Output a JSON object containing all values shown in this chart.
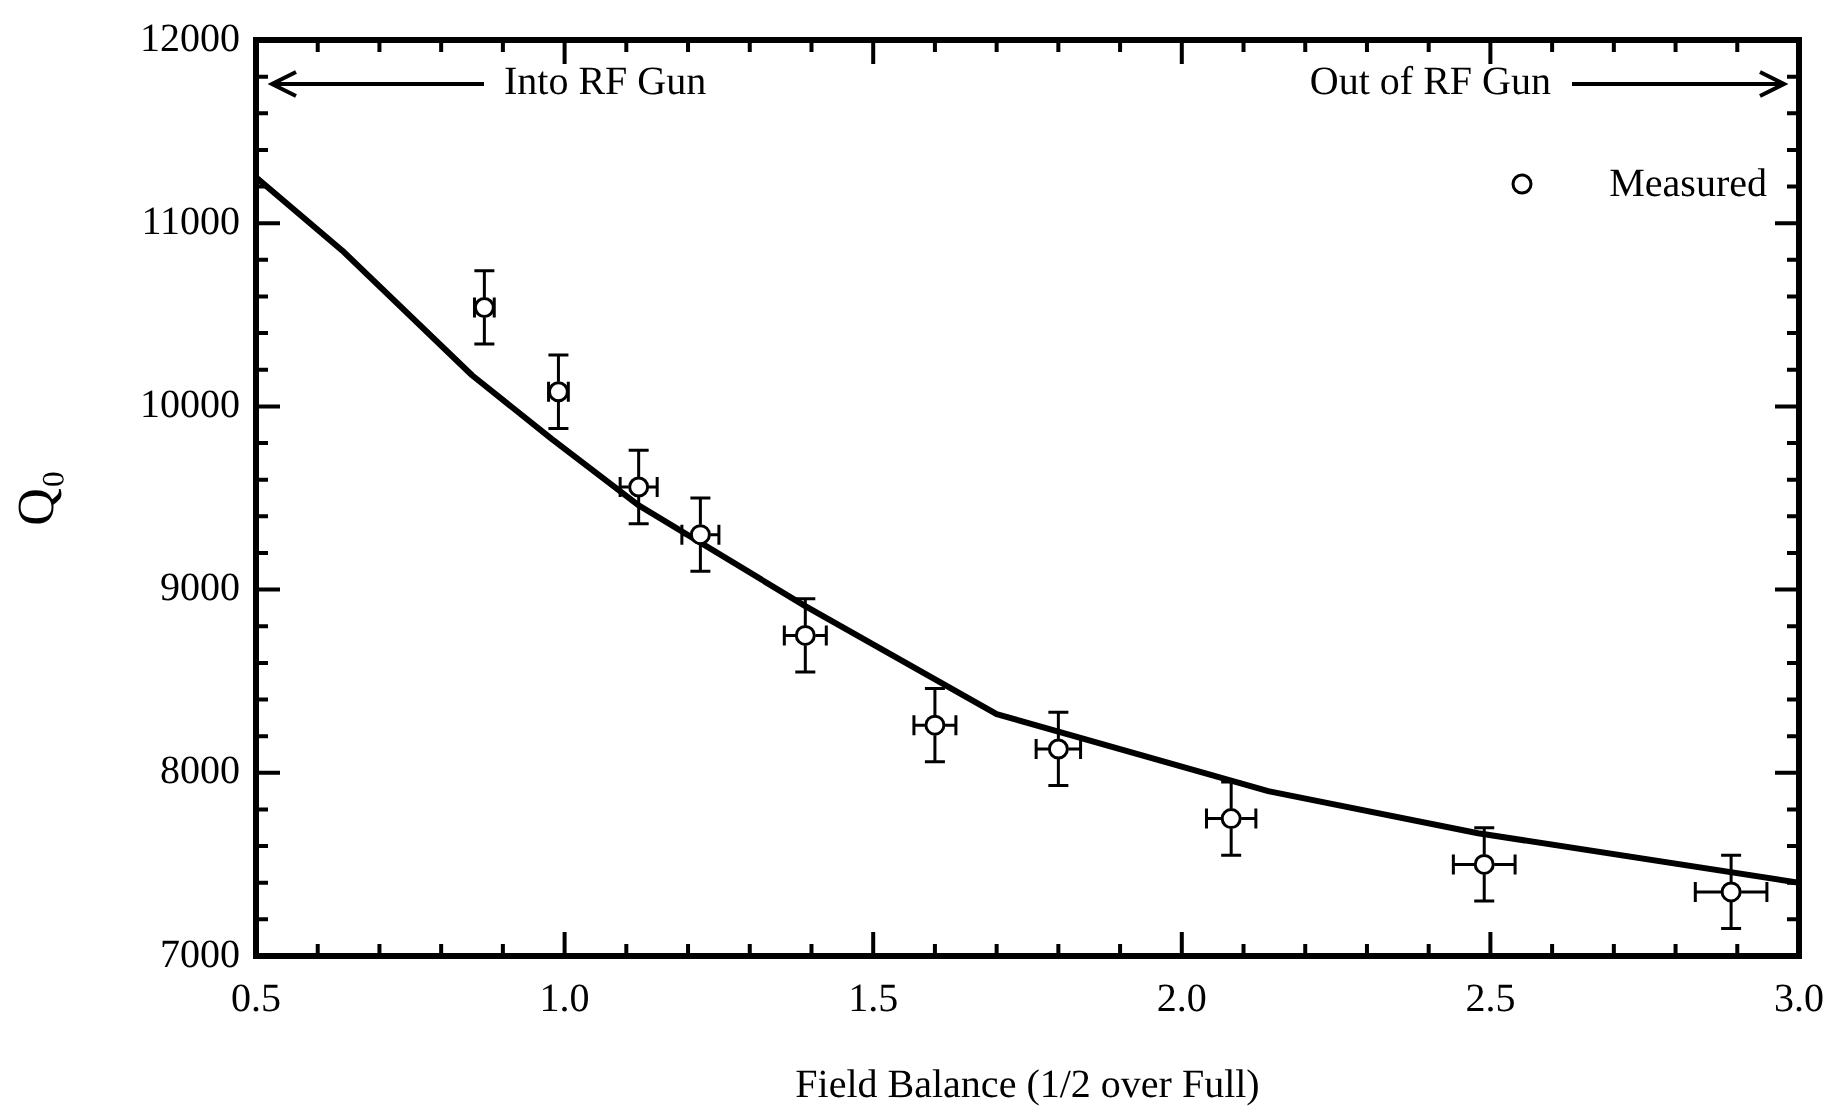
{
  "chart_data": {
    "type": "scatter",
    "xlabel": "Field Balance (1/2 over Full)",
    "ylabel": "Q₀",
    "xlim": [
      0.5,
      3.0
    ],
    "ylim": [
      7000,
      12000
    ],
    "xticks": [
      0.5,
      {
        "value": 0.6,
        "label": null
      },
      {
        "value": 0.7,
        "label": null
      },
      {
        "value": 0.8,
        "label": null
      },
      {
        "value": 0.9,
        "label": null
      },
      {
        "value": 1.0,
        "label": "1.0"
      },
      {
        "value": 1.1,
        "label": null
      },
      {
        "value": 1.2,
        "label": null
      },
      {
        "value": 1.3,
        "label": null
      },
      {
        "value": 1.4,
        "label": null
      },
      1.5,
      {
        "value": 1.6,
        "label": null
      },
      {
        "value": 1.7,
        "label": null
      },
      {
        "value": 1.8,
        "label": null
      },
      {
        "value": 1.9,
        "label": null
      },
      {
        "value": 2.0,
        "label": "2.0"
      },
      {
        "value": 2.1,
        "label": null
      },
      {
        "value": 2.2,
        "label": null
      },
      {
        "value": 2.3,
        "label": null
      },
      {
        "value": 2.4,
        "label": null
      },
      2.5,
      {
        "value": 2.6,
        "label": null
      },
      {
        "value": 2.7,
        "label": null
      },
      {
        "value": 2.8,
        "label": null
      },
      {
        "value": 2.9,
        "label": null
      },
      {
        "value": 3.0,
        "label": "3.0"
      }
    ],
    "yticks": [
      7000,
      {
        "value": 7200,
        "label": null
      },
      {
        "value": 7400,
        "label": null
      },
      {
        "value": 7600,
        "label": null
      },
      {
        "value": 7800,
        "label": null
      },
      8000,
      {
        "value": 8200,
        "label": null
      },
      {
        "value": 8400,
        "label": null
      },
      {
        "value": 8600,
        "label": null
      },
      {
        "value": 8800,
        "label": null
      },
      9000,
      {
        "value": 9200,
        "label": null
      },
      {
        "value": 9400,
        "label": null
      },
      {
        "value": 9600,
        "label": null
      },
      {
        "value": 9800,
        "label": null
      },
      10000,
      {
        "value": 10200,
        "label": null
      },
      {
        "value": 10400,
        "label": null
      },
      {
        "value": 10600,
        "label": null
      },
      {
        "value": 10800,
        "label": null
      },
      11000,
      {
        "value": 11200,
        "label": null
      },
      {
        "value": 11400,
        "label": null
      },
      {
        "value": 11600,
        "label": null
      },
      {
        "value": 11800,
        "label": null
      },
      12000
    ],
    "grid": false,
    "legend": "top right",
    "marker": "circle",
    "annotations": [
      "Into RF Gun",
      "Out of RF Gun"
    ],
    "series": [
      {
        "name": "Measured",
        "color": "#000000",
        "x": [
          0.87,
          0.99,
          1.12,
          1.22,
          1.39,
          1.6,
          1.8,
          2.08,
          2.49,
          2.89
        ],
        "values": [
          10540,
          10080,
          9560,
          9300,
          8750,
          8260,
          8130,
          7750,
          7500,
          7350
        ],
        "errors": [
          200,
          200,
          200,
          200,
          200,
          200,
          200,
          200,
          200,
          200
        ],
        "xerrors": [
          0.016,
          0.016,
          0.03,
          0.03,
          0.034,
          0.034,
          0.036,
          0.04,
          0.05,
          0.058
        ]
      },
      {
        "type": "line",
        "color": "#000000",
        "line_style": "solid",
        "marker": "none",
        "x": [
          0.5,
          0.64,
          0.85,
          0.98,
          1.12,
          1.39,
          1.7,
          2.14,
          2.48,
          3.0
        ],
        "values": [
          11250,
          10850,
          10170,
          9820,
          9460,
          8910,
          8320,
          7900,
          7670,
          7400
        ]
      }
    ]
  }
}
